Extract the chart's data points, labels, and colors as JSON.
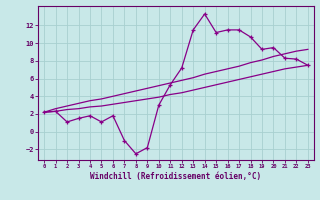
{
  "xlabel": "Windchill (Refroidissement éolien,°C)",
  "background_color": "#c8e8e8",
  "grid_color": "#a8d0d0",
  "line_color": "#880088",
  "x_data": [
    0,
    1,
    2,
    3,
    4,
    5,
    6,
    7,
    8,
    9,
    10,
    11,
    12,
    13,
    14,
    15,
    16,
    17,
    18,
    19,
    20,
    21,
    22,
    23
  ],
  "y_main": [
    2.2,
    2.3,
    1.1,
    1.5,
    1.8,
    1.1,
    1.8,
    -1.0,
    -2.5,
    -1.8,
    3.0,
    5.3,
    7.2,
    11.5,
    13.3,
    11.2,
    11.5,
    11.5,
    10.7,
    9.3,
    9.5,
    8.3,
    8.2,
    7.5
  ],
  "y_trend1": [
    2.2,
    2.6,
    2.9,
    3.2,
    3.5,
    3.7,
    4.0,
    4.3,
    4.6,
    4.9,
    5.2,
    5.5,
    5.8,
    6.1,
    6.5,
    6.8,
    7.1,
    7.4,
    7.8,
    8.1,
    8.5,
    8.8,
    9.1,
    9.3
  ],
  "y_trend2": [
    2.2,
    2.3,
    2.5,
    2.6,
    2.8,
    2.9,
    3.1,
    3.3,
    3.5,
    3.7,
    3.9,
    4.2,
    4.4,
    4.7,
    5.0,
    5.3,
    5.6,
    5.9,
    6.2,
    6.5,
    6.8,
    7.1,
    7.3,
    7.5
  ],
  "ylim": [
    -3.2,
    14.2
  ],
  "xlim": [
    -0.5,
    23.5
  ],
  "yticks": [
    -2,
    0,
    2,
    4,
    6,
    8,
    10,
    12
  ],
  "xticks": [
    0,
    1,
    2,
    3,
    4,
    5,
    6,
    7,
    8,
    9,
    10,
    11,
    12,
    13,
    14,
    15,
    16,
    17,
    18,
    19,
    20,
    21,
    22,
    23
  ]
}
